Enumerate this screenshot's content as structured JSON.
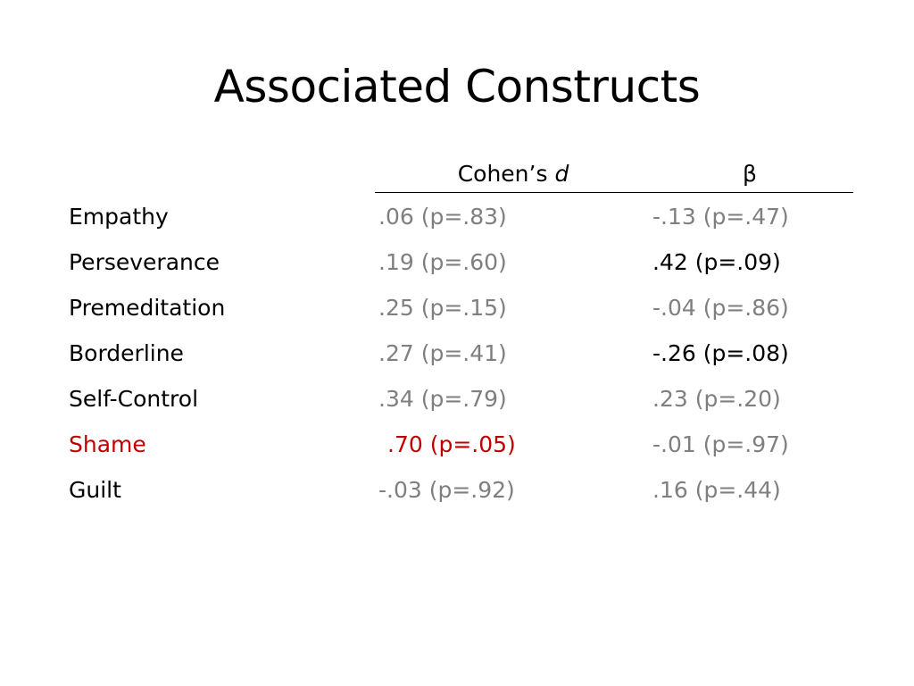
{
  "slide": {
    "title": "Associated Constructs"
  },
  "table": {
    "headers": {
      "cohens_prefix": "Cohen’s ",
      "cohens_italic": "d",
      "beta": "β"
    },
    "rows": [
      {
        "label": "Empathy",
        "d": ".06 (p=.83)",
        "beta": "-.13 (p=.47)",
        "label_color": "#000000",
        "d_color": "#7f7f7f",
        "beta_color": "#7f7f7f"
      },
      {
        "label": "Perseverance",
        "d": ".19 (p=.60)",
        "beta": ".42 (p=.09)",
        "label_color": "#000000",
        "d_color": "#7f7f7f",
        "beta_color": "#000000"
      },
      {
        "label": "Premeditation",
        "d": ".25 (p=.15)",
        "beta": "-.04 (p=.86)",
        "label_color": "#000000",
        "d_color": "#7f7f7f",
        "beta_color": "#7f7f7f"
      },
      {
        "label": "Borderline",
        "d": ".27 (p=.41)",
        "beta": "-.26 (p=.08)",
        "label_color": "#000000",
        "d_color": "#7f7f7f",
        "beta_color": "#000000"
      },
      {
        "label": "Self-Control",
        "d": ".34 (p=.79)",
        "beta": ".23 (p=.20)",
        "label_color": "#000000",
        "d_color": "#7f7f7f",
        "beta_color": "#7f7f7f"
      },
      {
        "label": "Shame",
        "d": ".70 (p=.05)",
        "beta": "-.01 (p=.97)",
        "label_color": "#c00000",
        "d_color": "#c00000",
        "beta_color": "#7f7f7f"
      },
      {
        "label": "Guilt",
        "d": "-.03 (p=.92)",
        "beta": ".16 (p=.44)",
        "label_color": "#000000",
        "d_color": "#7f7f7f",
        "beta_color": "#7f7f7f"
      }
    ]
  }
}
